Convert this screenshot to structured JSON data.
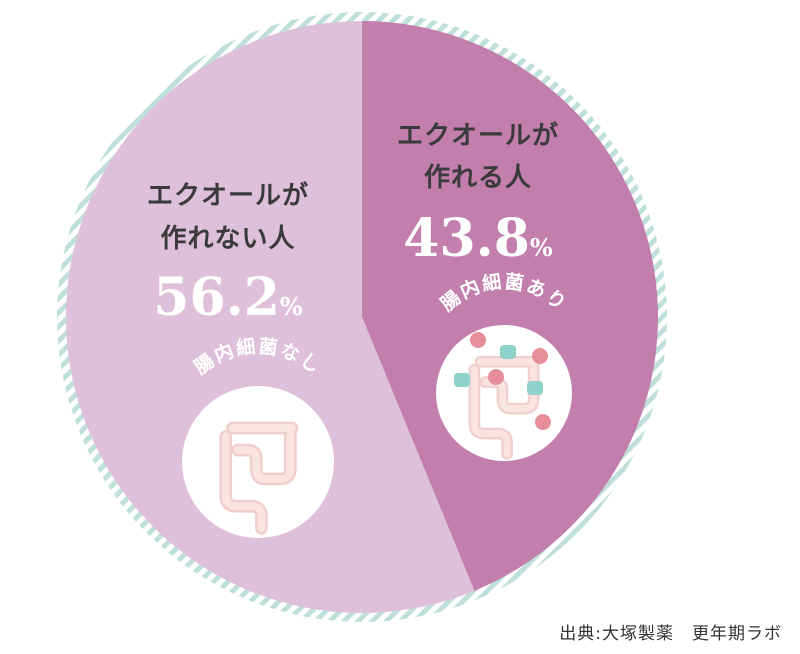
{
  "chart_data": {
    "type": "pie",
    "start_angle_deg": 0,
    "direction": "clockwise",
    "slices": [
      {
        "label_line1": "エクオールが",
        "label_line2": "作れる人",
        "value": 43.8,
        "value_text": "43.8",
        "unit": "%",
        "color": "#c27fae",
        "badge_text": "腸内細菌あり",
        "bacteria": true
      },
      {
        "label_line1": "エクオールが",
        "label_line2": "作れない人",
        "value": 56.2,
        "value_text": "56.2",
        "unit": "%",
        "color": "#dfc0da",
        "badge_text": "腸内細菌なし",
        "bacteria": false
      }
    ],
    "stripe_colors": [
      "#bfe0da",
      "#ffffff"
    ]
  },
  "source": "出典:大塚製薬　更年期ラボ",
  "colors": {
    "intestine_fill": "#f9e4e1",
    "intestine_stroke": "#f0cfcc",
    "bacteria_pink": "#e68f9b",
    "bacteria_teal": "#8fd1cb"
  }
}
